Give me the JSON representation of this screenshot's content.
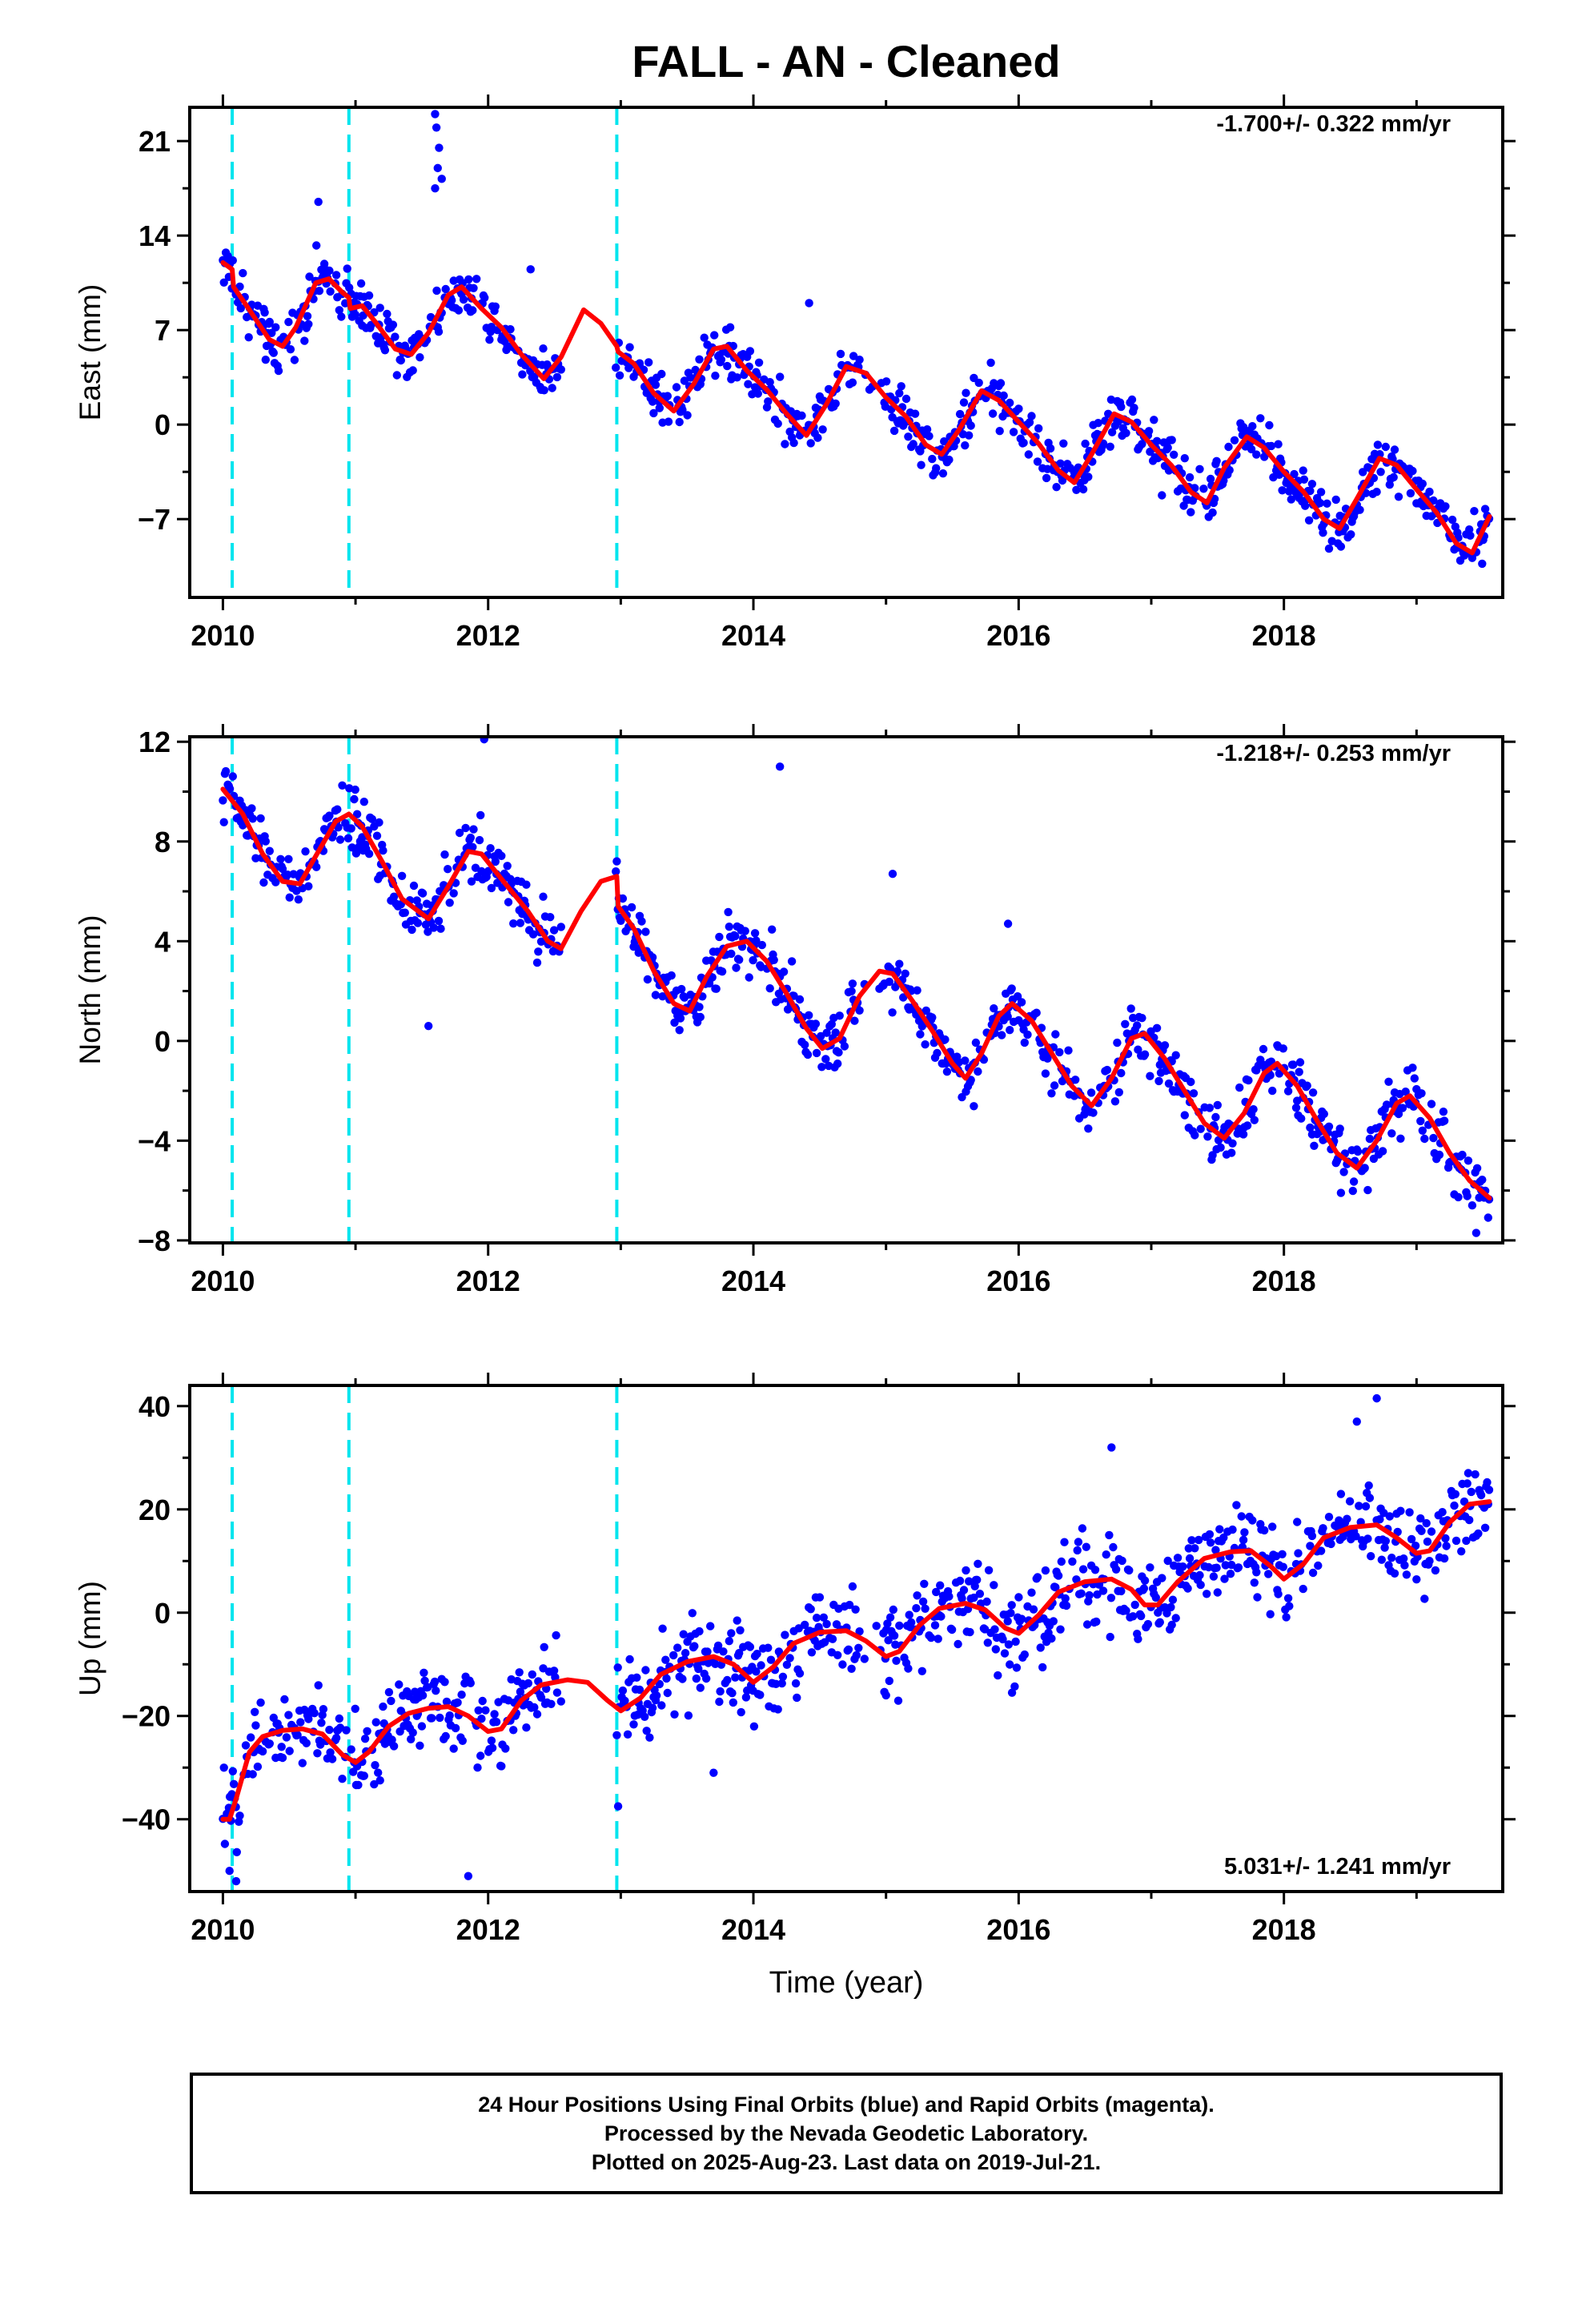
{
  "figure": {
    "title": "FALL  - AN - Cleaned",
    "xlabel": "Time (year)"
  },
  "colors": {
    "final_orbits": "#0000ff",
    "model": "#ff0000",
    "breaks": "#00e5ee",
    "axes": "#000000"
  },
  "chart_data": [
    {
      "type": "scatter",
      "id": "east",
      "ylabel": "East (mm)",
      "xlim": [
        2009.75,
        2019.65
      ],
      "ylim": [
        -12.8,
        23.5
      ],
      "xticks": [
        2010,
        2012,
        2014,
        2016,
        2018
      ],
      "yticks": [
        -7,
        0,
        7,
        14,
        21
      ],
      "rate_label": "-1.700+/- 0.322 mm/yr",
      "rate_position": "top-right",
      "breaks": [
        2010.07,
        2010.95,
        2012.97
      ],
      "noise": 1.4,
      "outliers": [
        [
          2011.6,
          17.5
        ],
        [
          2011.62,
          19.0
        ],
        [
          2011.63,
          20.5
        ],
        [
          2011.61,
          22.0
        ],
        [
          2011.65,
          18.2
        ],
        [
          2011.6,
          23.0
        ],
        [
          2010.72,
          16.5
        ],
        [
          2012.32,
          11.5
        ],
        [
          2014.42,
          9.0
        ]
      ],
      "model": [
        [
          2010.0,
          12.0
        ],
        [
          2010.07,
          11.5
        ],
        [
          2010.08,
          10.2
        ],
        [
          2010.2,
          8.5
        ],
        [
          2010.35,
          6.3
        ],
        [
          2010.45,
          5.8
        ],
        [
          2010.55,
          7.2
        ],
        [
          2010.7,
          10.5
        ],
        [
          2010.8,
          10.8
        ],
        [
          2010.9,
          9.8
        ],
        [
          2010.95,
          9.4
        ],
        [
          2010.96,
          8.6
        ],
        [
          2011.05,
          8.8
        ],
        [
          2011.15,
          7.6
        ],
        [
          2011.3,
          5.6
        ],
        [
          2011.42,
          5.2
        ],
        [
          2011.55,
          6.8
        ],
        [
          2011.7,
          9.6
        ],
        [
          2011.8,
          10.2
        ],
        [
          2011.95,
          8.6
        ],
        [
          2012.1,
          7.2
        ],
        [
          2012.25,
          5.2
        ],
        [
          2012.42,
          3.4
        ],
        [
          2012.55,
          5.0
        ],
        [
          2012.72,
          8.5
        ],
        [
          2012.85,
          7.5
        ],
        [
          2012.97,
          5.8
        ],
        [
          2012.98,
          5.4
        ],
        [
          2013.1,
          4.5
        ],
        [
          2013.25,
          2.3
        ],
        [
          2013.4,
          1.0
        ],
        [
          2013.55,
          3.0
        ],
        [
          2013.7,
          5.6
        ],
        [
          2013.8,
          5.8
        ],
        [
          2013.95,
          4.0
        ],
        [
          2014.1,
          2.6
        ],
        [
          2014.25,
          0.8
        ],
        [
          2014.4,
          -0.8
        ],
        [
          2014.55,
          1.5
        ],
        [
          2014.7,
          4.3
        ],
        [
          2014.85,
          3.8
        ],
        [
          2015.0,
          2.0
        ],
        [
          2015.15,
          0.6
        ],
        [
          2015.3,
          -1.5
        ],
        [
          2015.42,
          -2.2
        ],
        [
          2015.55,
          -0.4
        ],
        [
          2015.72,
          2.5
        ],
        [
          2015.85,
          1.8
        ],
        [
          2016.0,
          0.2
        ],
        [
          2016.15,
          -1.4
        ],
        [
          2016.3,
          -3.4
        ],
        [
          2016.42,
          -4.3
        ],
        [
          2016.55,
          -2.2
        ],
        [
          2016.72,
          0.8
        ],
        [
          2016.85,
          0.2
        ],
        [
          2017.0,
          -1.5
        ],
        [
          2017.15,
          -3.0
        ],
        [
          2017.3,
          -5.0
        ],
        [
          2017.42,
          -5.8
        ],
        [
          2017.55,
          -3.2
        ],
        [
          2017.72,
          -0.9
        ],
        [
          2017.85,
          -1.7
        ],
        [
          2018.0,
          -3.5
        ],
        [
          2018.15,
          -5.0
        ],
        [
          2018.3,
          -7.0
        ],
        [
          2018.42,
          -7.7
        ],
        [
          2018.55,
          -5.5
        ],
        [
          2018.72,
          -2.5
        ],
        [
          2018.85,
          -3.0
        ],
        [
          2019.0,
          -4.8
        ],
        [
          2019.15,
          -6.5
        ],
        [
          2019.3,
          -8.8
        ],
        [
          2019.42,
          -9.5
        ],
        [
          2019.55,
          -6.8
        ]
      ]
    },
    {
      "type": "scatter",
      "id": "north",
      "ylabel": "North (mm)",
      "xlim": [
        2009.75,
        2019.65
      ],
      "ylim": [
        -8.1,
        12.2
      ],
      "xticks": [
        2010,
        2012,
        2014,
        2016,
        2018
      ],
      "yticks": [
        -8,
        -4,
        0,
        4,
        8,
        12
      ],
      "rate_label": "-1.218+/- 0.253 mm/yr",
      "rate_position": "top-right",
      "breaks": [
        2010.07,
        2010.95,
        2012.97
      ],
      "noise": 0.85,
      "outliers": [
        [
          2011.97,
          12.1
        ],
        [
          2011.55,
          0.6
        ],
        [
          2014.2,
          11.0
        ],
        [
          2015.05,
          6.7
        ],
        [
          2015.92,
          4.7
        ],
        [
          2019.45,
          -7.7
        ]
      ],
      "model": [
        [
          2010.0,
          10.1
        ],
        [
          2010.15,
          9.1
        ],
        [
          2010.3,
          7.5
        ],
        [
          2010.45,
          6.4
        ],
        [
          2010.58,
          6.3
        ],
        [
          2010.72,
          7.6
        ],
        [
          2010.85,
          8.8
        ],
        [
          2010.95,
          9.1
        ],
        [
          2011.05,
          8.6
        ],
        [
          2011.2,
          7.2
        ],
        [
          2011.35,
          5.7
        ],
        [
          2011.55,
          4.9
        ],
        [
          2011.7,
          6.2
        ],
        [
          2011.85,
          7.6
        ],
        [
          2011.95,
          7.5
        ],
        [
          2012.1,
          6.5
        ],
        [
          2012.3,
          5.2
        ],
        [
          2012.45,
          4.0
        ],
        [
          2012.55,
          3.7
        ],
        [
          2012.7,
          5.2
        ],
        [
          2012.85,
          6.4
        ],
        [
          2012.97,
          6.6
        ],
        [
          2012.98,
          5.4
        ],
        [
          2013.1,
          4.5
        ],
        [
          2013.25,
          2.8
        ],
        [
          2013.4,
          1.5
        ],
        [
          2013.52,
          1.2
        ],
        [
          2013.65,
          2.6
        ],
        [
          2013.8,
          3.8
        ],
        [
          2013.95,
          4.0
        ],
        [
          2014.1,
          3.2
        ],
        [
          2014.25,
          1.9
        ],
        [
          2014.4,
          0.5
        ],
        [
          2014.52,
          -0.3
        ],
        [
          2014.65,
          0.1
        ],
        [
          2014.8,
          1.8
        ],
        [
          2014.95,
          2.8
        ],
        [
          2015.05,
          2.7
        ],
        [
          2015.2,
          1.6
        ],
        [
          2015.35,
          0.4
        ],
        [
          2015.5,
          -0.9
        ],
        [
          2015.6,
          -1.5
        ],
        [
          2015.72,
          -0.5
        ],
        [
          2015.85,
          1.0
        ],
        [
          2015.95,
          1.5
        ],
        [
          2016.1,
          0.8
        ],
        [
          2016.25,
          -0.5
        ],
        [
          2016.4,
          -1.8
        ],
        [
          2016.55,
          -2.6
        ],
        [
          2016.7,
          -1.5
        ],
        [
          2016.85,
          0.1
        ],
        [
          2016.95,
          0.3
        ],
        [
          2017.1,
          -0.7
        ],
        [
          2017.25,
          -2.0
        ],
        [
          2017.4,
          -3.3
        ],
        [
          2017.55,
          -3.9
        ],
        [
          2017.7,
          -2.9
        ],
        [
          2017.85,
          -1.3
        ],
        [
          2017.95,
          -0.9
        ],
        [
          2018.1,
          -1.8
        ],
        [
          2018.25,
          -3.2
        ],
        [
          2018.4,
          -4.5
        ],
        [
          2018.55,
          -5.1
        ],
        [
          2018.7,
          -4.0
        ],
        [
          2018.85,
          -2.5
        ],
        [
          2018.95,
          -2.2
        ],
        [
          2019.1,
          -3.1
        ],
        [
          2019.25,
          -4.5
        ],
        [
          2019.4,
          -5.6
        ],
        [
          2019.55,
          -6.3
        ]
      ]
    },
    {
      "type": "scatter",
      "id": "up",
      "ylabel": "Up (mm)",
      "xlim": [
        2009.75,
        2019.65
      ],
      "ylim": [
        -54.0,
        44.0
      ],
      "xticks": [
        2010,
        2012,
        2014,
        2016,
        2018
      ],
      "yticks": [
        -40,
        -20,
        0,
        20,
        40
      ],
      "rate_label": "5.031+/- 1.241 mm/yr",
      "rate_position": "bottom-right",
      "breaks": [
        2010.07,
        2010.95,
        2012.97
      ],
      "noise": 6.2,
      "outliers": [
        [
          2010.05,
          -50.0
        ],
        [
          2010.1,
          -52.0
        ],
        [
          2011.85,
          -51.0
        ],
        [
          2012.98,
          -37.5
        ],
        [
          2018.7,
          41.5
        ],
        [
          2018.55,
          37.0
        ],
        [
          2016.7,
          32.0
        ],
        [
          2013.7,
          -31.0
        ],
        [
          2015.0,
          -16.0
        ],
        [
          2015.95,
          -15.5
        ]
      ],
      "model": [
        [
          2010.0,
          -40.0
        ],
        [
          2010.05,
          -40.0
        ],
        [
          2010.1,
          -36.0
        ],
        [
          2010.2,
          -27.0
        ],
        [
          2010.3,
          -24.0
        ],
        [
          2010.45,
          -22.8
        ],
        [
          2010.6,
          -22.5
        ],
        [
          2010.75,
          -23.5
        ],
        [
          2010.9,
          -27.5
        ],
        [
          2011.0,
          -29.0
        ],
        [
          2011.1,
          -27.0
        ],
        [
          2011.25,
          -22.0
        ],
        [
          2011.4,
          -19.5
        ],
        [
          2011.55,
          -18.5
        ],
        [
          2011.7,
          -18.2
        ],
        [
          2011.85,
          -20.0
        ],
        [
          2012.0,
          -23.0
        ],
        [
          2012.1,
          -22.5
        ],
        [
          2012.25,
          -17.0
        ],
        [
          2012.4,
          -14.0
        ],
        [
          2012.6,
          -13.0
        ],
        [
          2012.75,
          -13.5
        ],
        [
          2012.9,
          -17.0
        ],
        [
          2013.0,
          -19.0
        ],
        [
          2013.15,
          -16.5
        ],
        [
          2013.3,
          -12.0
        ],
        [
          2013.5,
          -9.5
        ],
        [
          2013.7,
          -8.5
        ],
        [
          2013.85,
          -10.0
        ],
        [
          2014.0,
          -13.5
        ],
        [
          2014.15,
          -10.5
        ],
        [
          2014.3,
          -6.0
        ],
        [
          2014.5,
          -3.8
        ],
        [
          2014.7,
          -3.5
        ],
        [
          2014.85,
          -5.5
        ],
        [
          2015.0,
          -8.5
        ],
        [
          2015.1,
          -7.5
        ],
        [
          2015.25,
          -2.5
        ],
        [
          2015.4,
          0.8
        ],
        [
          2015.6,
          1.8
        ],
        [
          2015.75,
          0.5
        ],
        [
          2015.9,
          -3.0
        ],
        [
          2016.0,
          -4.0
        ],
        [
          2016.15,
          -0.5
        ],
        [
          2016.3,
          4.0
        ],
        [
          2016.5,
          6.0
        ],
        [
          2016.7,
          6.5
        ],
        [
          2016.85,
          4.5
        ],
        [
          2016.95,
          1.5
        ],
        [
          2017.05,
          1.5
        ],
        [
          2017.2,
          6.0
        ],
        [
          2017.4,
          10.5
        ],
        [
          2017.6,
          11.8
        ],
        [
          2017.75,
          12.0
        ],
        [
          2017.9,
          9.0
        ],
        [
          2018.0,
          6.5
        ],
        [
          2018.15,
          9.5
        ],
        [
          2018.3,
          14.5
        ],
        [
          2018.5,
          16.5
        ],
        [
          2018.7,
          17.0
        ],
        [
          2018.85,
          14.5
        ],
        [
          2019.0,
          11.5
        ],
        [
          2019.1,
          12.0
        ],
        [
          2019.25,
          17.5
        ],
        [
          2019.4,
          21.0
        ],
        [
          2019.55,
          21.5
        ]
      ]
    }
  ],
  "footer": {
    "line1": "24 Hour Positions Using Final Orbits (blue) and Rapid Orbits (magenta).",
    "line2": "Processed by the Nevada Geodetic Laboratory.",
    "line3": "Plotted on 2025-Aug-23. Last data on 2019-Jul-21."
  }
}
